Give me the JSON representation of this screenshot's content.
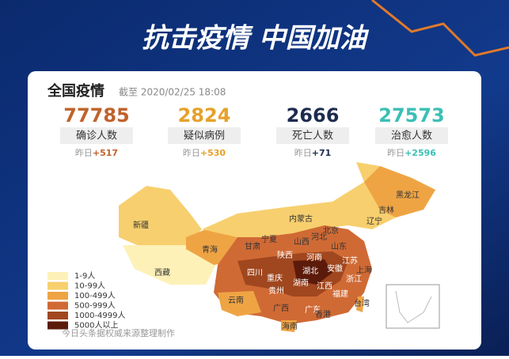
{
  "banner": {
    "title": "抗击疫情 中国加油"
  },
  "card": {
    "title": "全国疫情",
    "updated": "截至 2020/02/25 18:08",
    "stats": [
      {
        "value": "77785",
        "label": "确诊人数",
        "yesterday": "昨日",
        "delta": "+517",
        "color": "#c0622b"
      },
      {
        "value": "2824",
        "label": "疑似病例",
        "yesterday": "昨日",
        "delta": "+530",
        "color": "#e5a12a"
      },
      {
        "value": "2666",
        "label": "死亡人数",
        "yesterday": "昨日",
        "delta": "+71",
        "color": "#1d2b4f"
      },
      {
        "value": "27573",
        "label": "治愈人数",
        "yesterday": "昨日",
        "delta": "+2596",
        "color": "#3bbfb5"
      }
    ]
  },
  "map": {
    "provinces": [
      "新疆",
      "西藏",
      "青海",
      "甘肃",
      "宁夏",
      "内蒙古",
      "黑龙江",
      "吉林",
      "辽宁",
      "北京",
      "河北",
      "山西",
      "陕西",
      "河南",
      "山东",
      "江苏",
      "上海",
      "安徽",
      "湖北",
      "浙江",
      "四川",
      "重庆",
      "湖南",
      "江西",
      "贵州",
      "云南",
      "广西",
      "广东",
      "福建",
      "香港",
      "台湾",
      "海南"
    ],
    "legend": [
      {
        "label": "1-9人",
        "color": "#fdf1b8"
      },
      {
        "label": "10-99人",
        "color": "#f7cf6e"
      },
      {
        "label": "100-499人",
        "color": "#efa444"
      },
      {
        "label": "500-999人",
        "color": "#d06a35"
      },
      {
        "label": "1000-4999人",
        "color": "#a0471f"
      },
      {
        "label": "5000人以上",
        "color": "#5c1a0a"
      }
    ],
    "source": "今日头条据权威来源整理制作"
  }
}
